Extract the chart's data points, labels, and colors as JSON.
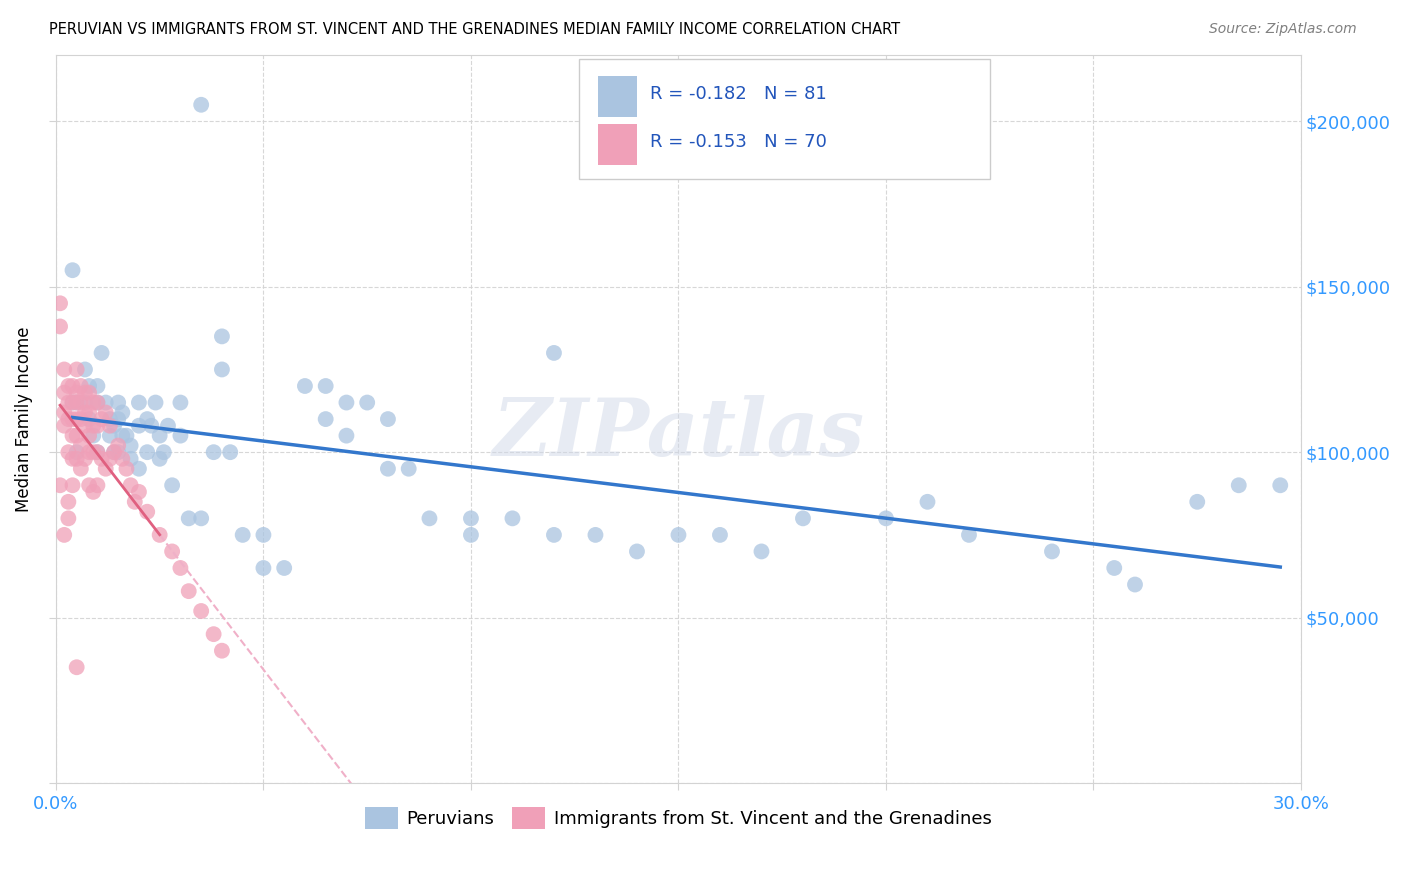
{
  "title": "PERUVIAN VS IMMIGRANTS FROM ST. VINCENT AND THE GRENADINES MEDIAN FAMILY INCOME CORRELATION CHART",
  "source": "Source: ZipAtlas.com",
  "ylabel": "Median Family Income",
  "xlim": [
    0,
    0.3
  ],
  "ylim": [
    0,
    220000
  ],
  "xticks": [
    0.0,
    0.05,
    0.1,
    0.15,
    0.2,
    0.25,
    0.3
  ],
  "xticklabels": [
    "0.0%",
    "",
    "",
    "",
    "",
    "",
    "30.0%"
  ],
  "yticks": [
    0,
    50000,
    100000,
    150000,
    200000
  ],
  "right_yticklabels": [
    "",
    "$50,000",
    "$100,000",
    "$150,000",
    "$200,000"
  ],
  "blue_color": "#aac4e0",
  "pink_color": "#f0a0b8",
  "blue_line_color": "#3377cc",
  "pink_line_color": "#e06080",
  "pink_dash_color": "#f0b0c8",
  "blue_R": "-0.182",
  "blue_N": "81",
  "pink_R": "-0.153",
  "pink_N": "70",
  "legend_label_blue": "Peruvians",
  "legend_label_pink": "Immigrants from St. Vincent and the Grenadines",
  "watermark": "ZIPatlas",
  "blue_scatter_x": [
    0.035,
    0.004,
    0.004,
    0.005,
    0.005,
    0.007,
    0.007,
    0.008,
    0.008,
    0.009,
    0.01,
    0.01,
    0.01,
    0.011,
    0.012,
    0.013,
    0.013,
    0.014,
    0.014,
    0.015,
    0.015,
    0.015,
    0.016,
    0.016,
    0.017,
    0.018,
    0.018,
    0.02,
    0.02,
    0.02,
    0.022,
    0.022,
    0.023,
    0.024,
    0.025,
    0.025,
    0.026,
    0.027,
    0.028,
    0.03,
    0.03,
    0.032,
    0.035,
    0.038,
    0.04,
    0.04,
    0.042,
    0.045,
    0.05,
    0.055,
    0.06,
    0.065,
    0.065,
    0.07,
    0.07,
    0.075,
    0.08,
    0.085,
    0.09,
    0.1,
    0.1,
    0.11,
    0.12,
    0.13,
    0.14,
    0.15,
    0.16,
    0.17,
    0.18,
    0.2,
    0.21,
    0.22,
    0.24,
    0.255,
    0.26,
    0.275,
    0.285,
    0.295,
    0.05,
    0.08,
    0.12
  ],
  "blue_scatter_y": [
    205000,
    155000,
    115000,
    115000,
    100000,
    125000,
    115000,
    120000,
    110000,
    105000,
    120000,
    115000,
    100000,
    130000,
    115000,
    110000,
    105000,
    108000,
    100000,
    115000,
    110000,
    100000,
    112000,
    105000,
    105000,
    102000,
    98000,
    115000,
    108000,
    95000,
    110000,
    100000,
    108000,
    115000,
    105000,
    98000,
    100000,
    108000,
    90000,
    115000,
    105000,
    80000,
    80000,
    100000,
    135000,
    125000,
    100000,
    75000,
    65000,
    65000,
    120000,
    120000,
    110000,
    115000,
    105000,
    115000,
    110000,
    95000,
    80000,
    75000,
    80000,
    80000,
    75000,
    75000,
    70000,
    75000,
    75000,
    70000,
    80000,
    80000,
    85000,
    75000,
    70000,
    65000,
    60000,
    85000,
    90000,
    90000,
    75000,
    95000,
    130000
  ],
  "pink_scatter_x": [
    0.001,
    0.001,
    0.001,
    0.002,
    0.002,
    0.002,
    0.002,
    0.002,
    0.003,
    0.003,
    0.003,
    0.003,
    0.003,
    0.004,
    0.004,
    0.004,
    0.004,
    0.004,
    0.004,
    0.005,
    0.005,
    0.005,
    0.005,
    0.005,
    0.005,
    0.005,
    0.006,
    0.006,
    0.006,
    0.006,
    0.006,
    0.007,
    0.007,
    0.007,
    0.007,
    0.008,
    0.008,
    0.008,
    0.008,
    0.008,
    0.009,
    0.009,
    0.009,
    0.009,
    0.01,
    0.01,
    0.01,
    0.01,
    0.011,
    0.011,
    0.012,
    0.012,
    0.013,
    0.013,
    0.014,
    0.015,
    0.016,
    0.017,
    0.018,
    0.019,
    0.02,
    0.022,
    0.025,
    0.028,
    0.03,
    0.032,
    0.035,
    0.038,
    0.04,
    0.003
  ],
  "pink_scatter_y": [
    145000,
    138000,
    90000,
    125000,
    118000,
    112000,
    108000,
    75000,
    120000,
    115000,
    110000,
    100000,
    85000,
    120000,
    115000,
    110000,
    105000,
    98000,
    90000,
    125000,
    118000,
    115000,
    110000,
    105000,
    98000,
    35000,
    120000,
    115000,
    110000,
    102000,
    95000,
    118000,
    112000,
    108000,
    98000,
    118000,
    112000,
    105000,
    100000,
    90000,
    115000,
    108000,
    100000,
    88000,
    115000,
    108000,
    100000,
    90000,
    110000,
    98000,
    112000,
    95000,
    108000,
    98000,
    100000,
    102000,
    98000,
    95000,
    90000,
    85000,
    88000,
    82000,
    75000,
    70000,
    65000,
    58000,
    52000,
    45000,
    40000,
    80000
  ]
}
